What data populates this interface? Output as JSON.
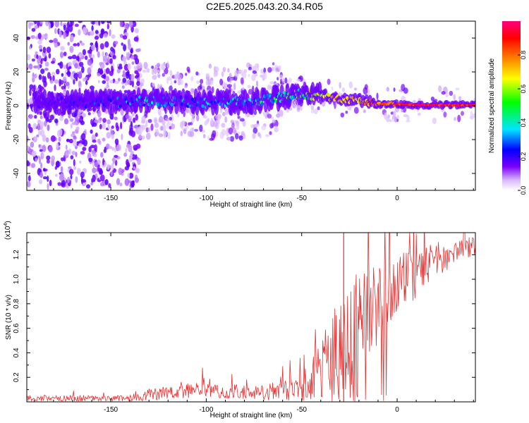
{
  "title": "C2E5.2025.043.20.34.R05",
  "chart_data": [
    {
      "type": "heatmap",
      "xlabel": "Height of straight line (km)",
      "ylabel": "Frequency (Hz)",
      "xlim": [
        -194,
        41
      ],
      "ylim": [
        -50,
        50
      ],
      "xticks": [
        -150,
        -100,
        -50,
        0
      ],
      "yticks": [
        -40,
        -20,
        0,
        20,
        40
      ],
      "colorbar": {
        "label": "Normalized spectral amplitude",
        "range": [
          0,
          1
        ],
        "ticks": [
          "0.0",
          "0.2",
          "0.4",
          "0.6",
          "0.8"
        ],
        "colors": [
          "#ffffff",
          "#7a00ff",
          "#0000ff",
          "#00e5ff",
          "#00ff00",
          "#ffff00",
          "#ff8000",
          "#ff0000",
          "#ff0080"
        ]
      },
      "ridge": {
        "x": [
          -190,
          -150,
          -130,
          -100,
          -80,
          -60,
          -50,
          -40,
          -30,
          -20,
          -10,
          0,
          10,
          20,
          41
        ],
        "freq": [
          2,
          2,
          3,
          2,
          2,
          5,
          7,
          6,
          4,
          3,
          1,
          1,
          0.5,
          0.5,
          0.5
        ],
        "amplitude": [
          0.2,
          0.3,
          0.4,
          0.35,
          0.4,
          0.5,
          0.6,
          0.65,
          0.7,
          0.75,
          0.85,
          0.9,
          0.95,
          0.95,
          0.95
        ]
      }
    },
    {
      "type": "line",
      "xlabel": "Height of straight line (km)",
      "ylabel": "SNR (10 * v/v)",
      "scale_label": "(x10",
      "scale_exp": "4",
      "xlim": [
        -194,
        41
      ],
      "ylim": [
        0,
        13800
      ],
      "xticks": [
        -150,
        -100,
        -50,
        0
      ],
      "yticks": [
        0.2,
        0.4,
        0.6,
        0.8,
        1.0,
        1.2
      ],
      "ytick_labels": [
        "0.2",
        "0.4",
        "0.6",
        "0.8",
        "1.0",
        "1.2"
      ],
      "line_color": "#e83030",
      "envelope": {
        "x": [
          -194,
          -170,
          -150,
          -140,
          -130,
          -110,
          -90,
          -70,
          -55,
          -45,
          -40,
          -35,
          -30,
          -25,
          -20,
          -15,
          -10,
          -5,
          0,
          10,
          20,
          30,
          41
        ],
        "base": [
          300,
          300,
          300,
          300,
          600,
          900,
          800,
          800,
          1000,
          1500,
          2500,
          3500,
          4500,
          5500,
          6500,
          7500,
          8000,
          8500,
          9500,
          10500,
          11500,
          12200,
          12800
        ],
        "amp": [
          250,
          250,
          250,
          250,
          500,
          600,
          600,
          700,
          900,
          1800,
          2500,
          3500,
          4000,
          4500,
          4500,
          4000,
          3500,
          3000,
          2500,
          2000,
          1500,
          1000,
          800
        ]
      }
    }
  ]
}
